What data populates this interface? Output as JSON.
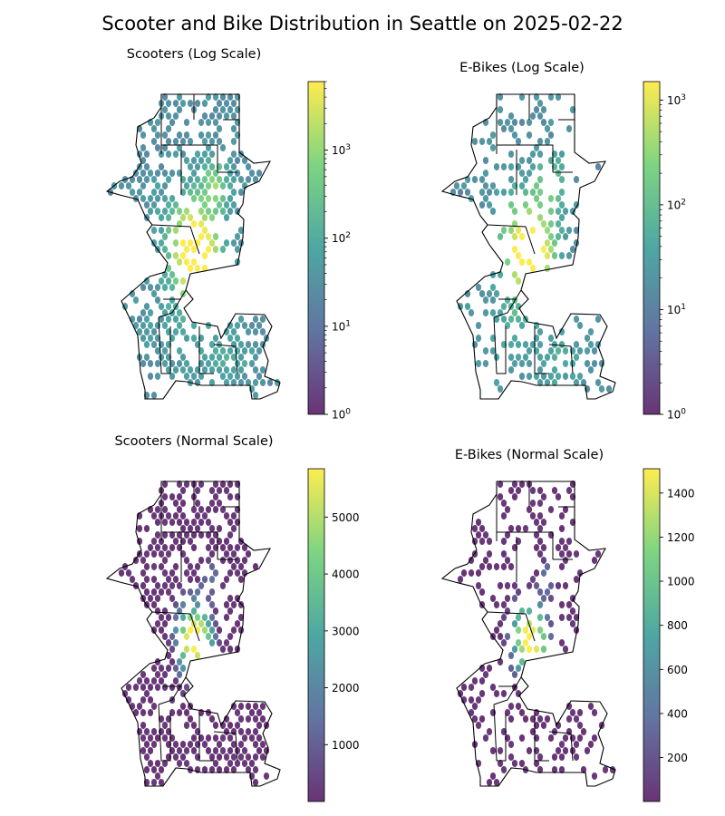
{
  "figure": {
    "title": "Scooter and Bike Distribution in Seattle on 2025-02-22"
  },
  "colormap": {
    "name": "viridis",
    "stops": [
      "#440154",
      "#3b528b",
      "#21918c",
      "#5ec962",
      "#fde725"
    ],
    "alpha": 0.8
  },
  "panels": [
    {
      "id": "scooters-log",
      "title": "Scooters (Log Scale)",
      "scale": "log",
      "vmin": 1,
      "vmax": 6000,
      "colorbar_ticks": [
        {
          "value": 1,
          "base": "10",
          "exp": "0"
        },
        {
          "value": 10,
          "base": "10",
          "exp": "1"
        },
        {
          "value": 100,
          "base": "10",
          "exp": "2"
        },
        {
          "value": 1000,
          "base": "10",
          "exp": "3"
        }
      ]
    },
    {
      "id": "ebikes-log",
      "title": "E-Bikes (Log Scale)",
      "scale": "log",
      "vmin": 1,
      "vmax": 1500,
      "colorbar_ticks": [
        {
          "value": 1,
          "base": "10",
          "exp": "0"
        },
        {
          "value": 10,
          "base": "10",
          "exp": "1"
        },
        {
          "value": 100,
          "base": "10",
          "exp": "2"
        },
        {
          "value": 1000,
          "base": "10",
          "exp": "3"
        }
      ]
    },
    {
      "id": "scooters-normal",
      "title": "Scooters (Normal Scale)",
      "scale": "linear",
      "vmin": 1,
      "vmax": 5850,
      "colorbar_ticks": [
        {
          "value": 1000,
          "label": "1000"
        },
        {
          "value": 2000,
          "label": "2000"
        },
        {
          "value": 3000,
          "label": "3000"
        },
        {
          "value": 4000,
          "label": "4000"
        },
        {
          "value": 5000,
          "label": "5000"
        }
      ]
    },
    {
      "id": "ebikes-normal",
      "title": "E-Bikes (Normal Scale)",
      "scale": "linear",
      "vmin": 1,
      "vmax": 1510,
      "colorbar_ticks": [
        {
          "value": 200,
          "label": "200"
        },
        {
          "value": 400,
          "label": "400"
        },
        {
          "value": 600,
          "label": "600"
        },
        {
          "value": 800,
          "label": "800"
        },
        {
          "value": 1000,
          "label": "1000"
        },
        {
          "value": 1200,
          "label": "1200"
        },
        {
          "value": 1400,
          "label": "1400"
        }
      ]
    }
  ]
}
